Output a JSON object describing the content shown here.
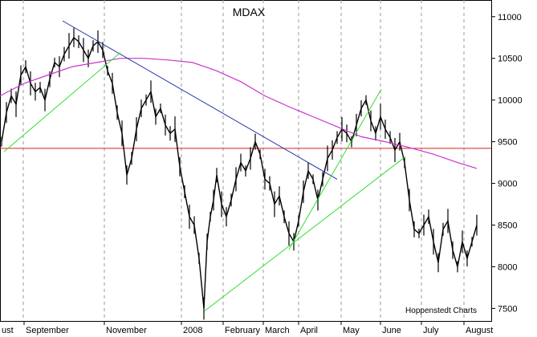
{
  "chart_data": {
    "type": "line",
    "title": "MDAX",
    "credit": "Hoppenstedt Charts",
    "x_tick_labels": [
      "ust",
      "September",
      "November",
      "2008",
      "February",
      "March",
      "April",
      "May",
      "June",
      "July",
      "August"
    ],
    "y_tick_labels": [
      "11000",
      "10500",
      "10000",
      "9500",
      "9000",
      "8500",
      "8000",
      "7500"
    ],
    "ylim": [
      7350,
      11200
    ],
    "grid": {
      "vertical_dashed": true
    },
    "colors": {
      "price": "#000000",
      "moving_average": "#cc33cc",
      "support_level": "#dd2222",
      "downtrend_line": "#2233aa",
      "uptrend_lines": "#33dd33"
    },
    "support_level": 9420,
    "series": [
      {
        "role": "price",
        "x": [
          2,
          8,
          14,
          20,
          26,
          32,
          38,
          44,
          50,
          56,
          62,
          68,
          74,
          80,
          86,
          92,
          98,
          104,
          110,
          116,
          122,
          128,
          134,
          140,
          146,
          152,
          158,
          164,
          170,
          176,
          182,
          188,
          194,
          200,
          206,
          212,
          218,
          224,
          230,
          236,
          242,
          248,
          254,
          258,
          262,
          266,
          270,
          276,
          282,
          288,
          294,
          300,
          306,
          312,
          318,
          324,
          330,
          336,
          342,
          348,
          354,
          360,
          366,
          372,
          378,
          384,
          390,
          396,
          402,
          408,
          414,
          420,
          426,
          432,
          438,
          444,
          450,
          456,
          462,
          468,
          474,
          480,
          486,
          492,
          498,
          504,
          510,
          516,
          522,
          528,
          534,
          540,
          546,
          552,
          558,
          564,
          570,
          576,
          582,
          588,
          594
        ],
        "y": [
          9500,
          9850,
          10050,
          9950,
          10300,
          10400,
          10200,
          10100,
          10150,
          10000,
          10250,
          10450,
          10400,
          10550,
          10650,
          10750,
          10700,
          10600,
          10500,
          10650,
          10700,
          10600,
          10350,
          10200,
          9850,
          9600,
          9100,
          9300,
          9650,
          9900,
          10000,
          10100,
          9800,
          9900,
          9700,
          9600,
          9650,
          9200,
          8900,
          8600,
          8500,
          8100,
          7500,
          8300,
          8600,
          8800,
          9100,
          8750,
          8600,
          8800,
          9050,
          9250,
          9150,
          9300,
          9500,
          9350,
          9050,
          9000,
          8750,
          8850,
          8600,
          8400,
          8300,
          8550,
          8900,
          9150,
          9050,
          8800,
          9050,
          9300,
          9400,
          9550,
          9650,
          9600,
          9500,
          9700,
          9900,
          10000,
          9750,
          9600,
          9800,
          9650,
          9550,
          9400,
          9500,
          9250,
          8800,
          8450,
          8400,
          8500,
          8600,
          8300,
          8050,
          8450,
          8550,
          8200,
          8000,
          8300,
          8100,
          8300,
          8500
        ]
      },
      {
        "role": "moving_average",
        "x": [
          0,
          30,
          60,
          90,
          120,
          150,
          180,
          210,
          240,
          270,
          300,
          330,
          360,
          390,
          420,
          450,
          480,
          510,
          540,
          570,
          594
        ],
        "y": [
          10050,
          10200,
          10300,
          10400,
          10450,
          10500,
          10500,
          10480,
          10450,
          10350,
          10220,
          10050,
          9920,
          9800,
          9680,
          9560,
          9500,
          9430,
          9350,
          9250,
          9180
        ]
      },
      {
        "role": "downtrend_line",
        "x": [
          78,
          420
        ],
        "y": [
          10950,
          9050
        ]
      },
      {
        "role": "uptrend_line",
        "x": [
          5,
          150
        ],
        "y": [
          9380,
          10570
        ]
      },
      {
        "role": "uptrend_line",
        "x": [
          255,
          505
        ],
        "y": [
          7470,
          9320
        ]
      },
      {
        "role": "uptrend_line",
        "x": [
          360,
          475
        ],
        "y": [
          8210,
          10130
        ]
      }
    ]
  }
}
